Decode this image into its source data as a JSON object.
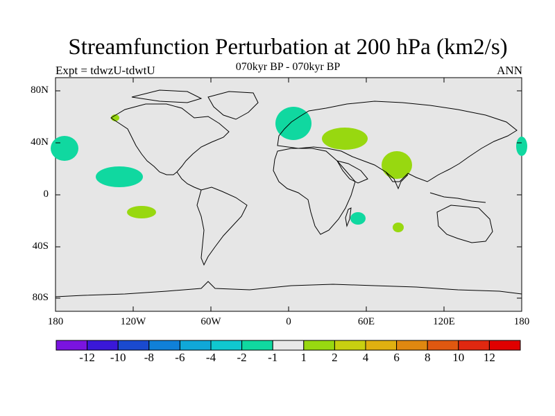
{
  "title": "Streamfunction Perturbation at 200 hPa (km2/s)",
  "subtitle": "070kyr BP - 070kyr BP",
  "left_label": "Expt = tdwzU-tdwtU",
  "right_label": "ANN",
  "lat_labels": [
    "80N",
    "40N",
    "0",
    "40S",
    "80S"
  ],
  "lon_labels": [
    "180",
    "120W",
    "60W",
    "0",
    "60E",
    "120E",
    "180"
  ],
  "colorbar": {
    "labels": [
      "-12",
      "-10",
      "-8",
      "-6",
      "-4",
      "-2",
      "-1",
      "1",
      "2",
      "4",
      "6",
      "8",
      "10",
      "12"
    ],
    "colors": [
      "#7a14e0",
      "#3a18d8",
      "#1a4ad0",
      "#1080d8",
      "#10a8d8",
      "#10c8d0",
      "#10d8a0",
      "#e8e8e8",
      "#98d810",
      "#c8d010",
      "#e0b010",
      "#e08810",
      "#e05810",
      "#e02810",
      "#e00000"
    ]
  },
  "colors": {
    "land_bg": "#e6e6e6",
    "neg_anomaly": "#10d8a0",
    "pos_anomaly": "#98d810"
  }
}
